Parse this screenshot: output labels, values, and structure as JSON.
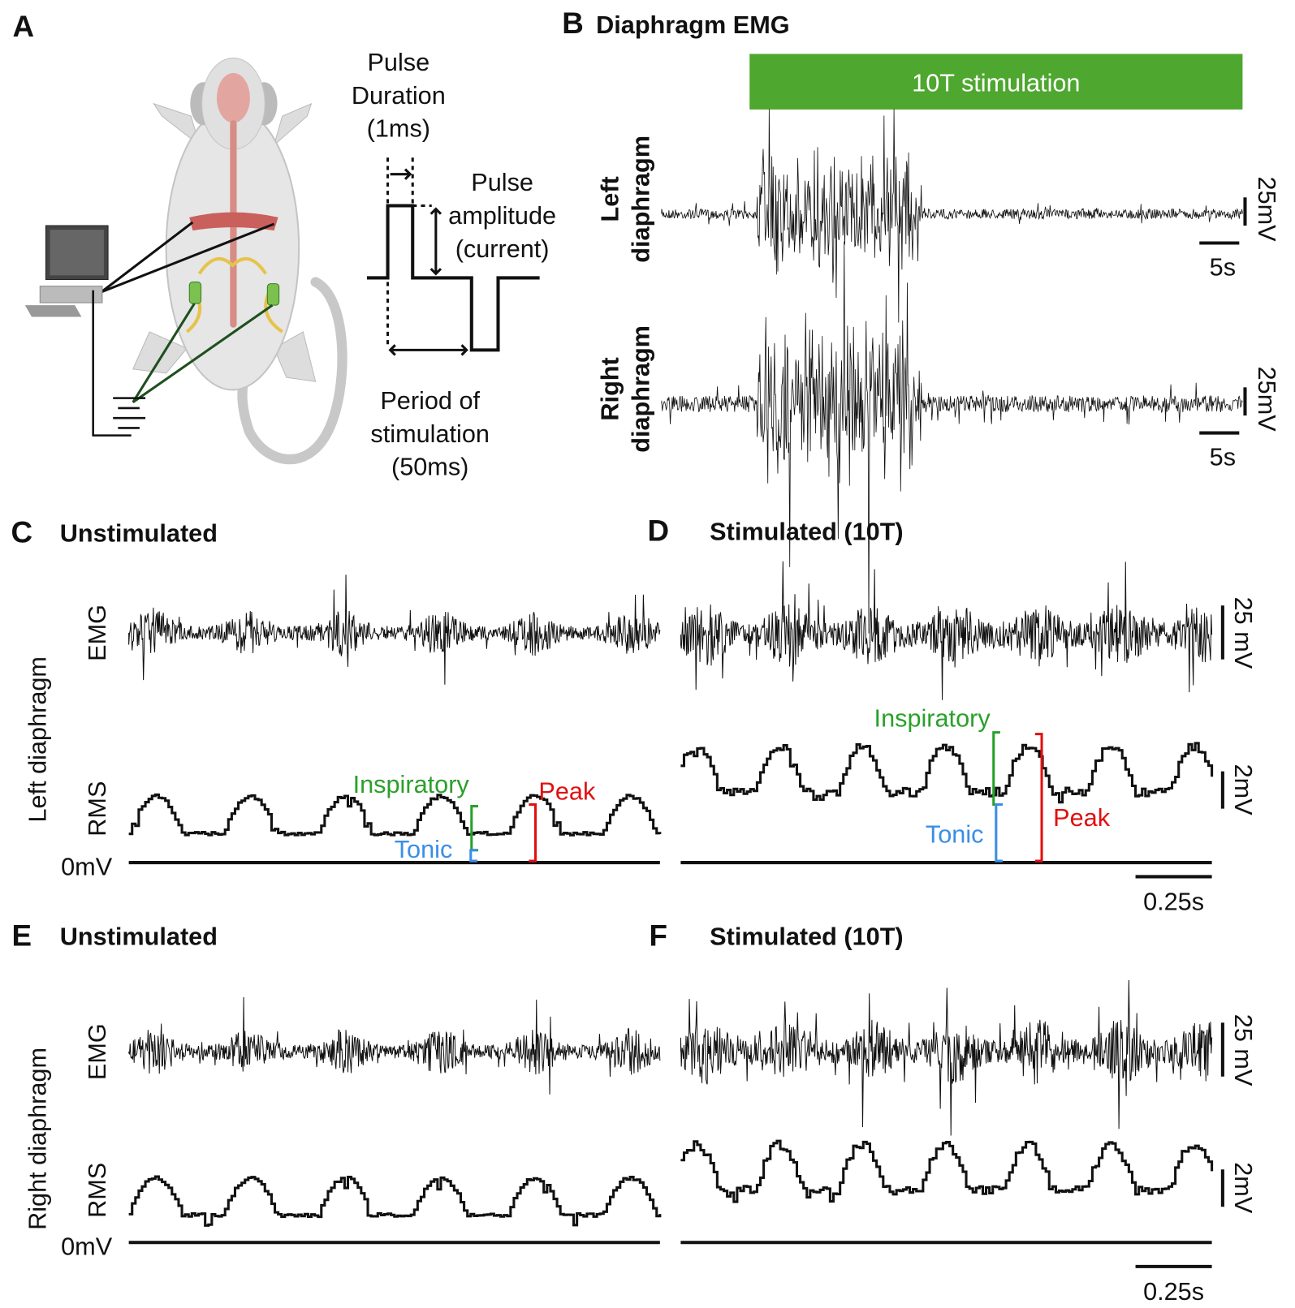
{
  "panel_a": {
    "label": "A",
    "pulse_duration": [
      "Pulse",
      "Duration",
      "(1ms)"
    ],
    "pulse_amplitude": [
      "Pulse",
      "amplitude",
      "(current)"
    ],
    "period": [
      "Period of",
      "stimulation",
      "(50ms)"
    ]
  },
  "panel_b": {
    "label": "B",
    "title": "Diaphragm EMG",
    "stimulation": "10T stimulation",
    "traces": [
      {
        "name": [
          "Left",
          "diaphragm"
        ],
        "scale_y": "25mV",
        "scale_x": "5s"
      },
      {
        "name": [
          "Right",
          "diaphragm"
        ],
        "scale_y": "25mV",
        "scale_x": "5s"
      }
    ]
  },
  "panel_c": {
    "label": "C",
    "title": "Unstimulated",
    "row_label": "Left diaphragm",
    "emg": "EMG",
    "rms": "RMS",
    "zero": "0mV",
    "annotations": {
      "inspiratory": "Inspiratory",
      "peak": "Peak",
      "tonic": "Tonic"
    }
  },
  "panel_d": {
    "label": "D",
    "title": "Stimulated (10T)",
    "scale_emg": "25 mV",
    "scale_rms": "2mV",
    "scale_x": "0.25s",
    "annotations": {
      "inspiratory": "Inspiratory",
      "peak": "Peak",
      "tonic": "Tonic"
    }
  },
  "panel_e": {
    "label": "E",
    "title": "Unstimulated",
    "row_label": "Right diaphragm",
    "emg": "EMG",
    "rms": "RMS",
    "zero": "0mV"
  },
  "panel_f": {
    "label": "F",
    "title": "Stimulated (10T)",
    "scale_emg": "25 mV",
    "scale_rms": "2mV",
    "scale_x": "0.25s"
  }
}
